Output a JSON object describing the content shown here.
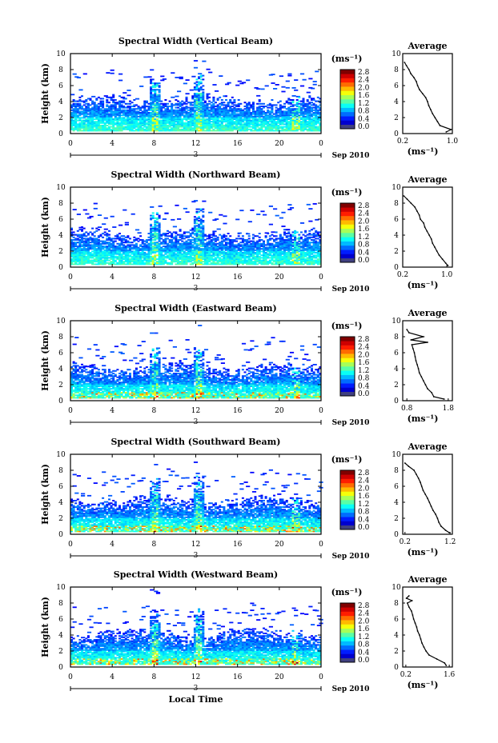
{
  "figure": {
    "xlabel": "Local Time",
    "average_title": "Average",
    "colorbar_unit": "(ms⁻¹)",
    "unit_label": "(ms⁻¹)",
    "ylabel": "Height (km)",
    "day_label": "3",
    "date_label": "Sep 2010"
  },
  "chart_data": [
    {
      "type": "heatmap",
      "title": "Spectral Width (Vertical Beam)",
      "ylabel": "Height (km)",
      "xticks": [
        "0",
        "4",
        "8",
        "12",
        "16",
        "20",
        "0"
      ],
      "yticks": [
        "0",
        "2",
        "4",
        "6",
        "8",
        "10"
      ],
      "xlim": [
        0,
        24
      ],
      "ylim": [
        0,
        10
      ],
      "colorbar": {
        "label": "(ms⁻¹)",
        "ticks": [
          "2.8",
          "2.4",
          "2.0",
          "1.6",
          "1.2",
          "0.8",
          "0.4",
          "0.0"
        ],
        "range": [
          0,
          2.8
        ]
      },
      "average_profile": {
        "title": "Average",
        "xlabel": "(ms⁻¹)",
        "xticks": [
          "0.2",
          "1.0"
        ],
        "xlim": [
          0.2,
          1.0
        ],
        "ylim": [
          0,
          10
        ],
        "height": [
          0.2,
          0.5,
          1,
          1.5,
          2,
          2.5,
          3,
          3.5,
          4,
          4.5,
          5,
          5.5,
          6,
          6.5,
          7,
          7.5,
          8,
          8.5,
          8.9
        ],
        "value": [
          0.9,
          0.98,
          0.8,
          0.76,
          0.72,
          0.68,
          0.65,
          0.62,
          0.6,
          0.57,
          0.52,
          0.47,
          0.44,
          0.42,
          0.38,
          0.33,
          0.3,
          0.26,
          0.23
        ]
      }
    },
    {
      "type": "heatmap",
      "title": "Spectral Width (Northward Beam)",
      "ylabel": "Height (km)",
      "xticks": [
        "0",
        "4",
        "8",
        "12",
        "16",
        "20",
        "0"
      ],
      "yticks": [
        "0",
        "2",
        "4",
        "6",
        "8",
        "10"
      ],
      "xlim": [
        0,
        24
      ],
      "ylim": [
        0,
        10
      ],
      "colorbar": {
        "label": "(ms⁻¹)",
        "ticks": [
          "2.8",
          "2.4",
          "2.0",
          "1.6",
          "1.2",
          "0.8",
          "0.4",
          "0.0"
        ],
        "range": [
          0,
          2.8
        ]
      },
      "average_profile": {
        "title": "Average",
        "xlabel": "(ms⁻¹)",
        "xticks": [
          "0.2",
          "1.0"
        ],
        "xlim": [
          0.2,
          1.1
        ],
        "ylim": [
          0,
          10
        ],
        "height": [
          0.2,
          0.5,
          1,
          1.5,
          2,
          2.5,
          3,
          3.5,
          4,
          4.5,
          5,
          5.5,
          6,
          6.5,
          7,
          7.5,
          8,
          8.5,
          8.9
        ],
        "value": [
          1.02,
          0.98,
          0.92,
          0.86,
          0.82,
          0.78,
          0.74,
          0.72,
          0.68,
          0.64,
          0.6,
          0.58,
          0.52,
          0.5,
          0.46,
          0.42,
          0.35,
          0.28,
          0.22
        ]
      }
    },
    {
      "type": "heatmap",
      "title": "Spectral Width (Eastward Beam)",
      "ylabel": "Height (km)",
      "xticks": [
        "0",
        "4",
        "8",
        "12",
        "16",
        "20",
        "0"
      ],
      "yticks": [
        "0",
        "2",
        "4",
        "6",
        "8",
        "10"
      ],
      "xlim": [
        0,
        24
      ],
      "ylim": [
        0,
        10
      ],
      "colorbar": {
        "label": "(ms⁻¹)",
        "ticks": [
          "2.8",
          "2.4",
          "2.0",
          "1.6",
          "1.2",
          "0.8",
          "0.4",
          "0.0"
        ],
        "range": [
          0,
          2.8
        ]
      },
      "average_profile": {
        "title": "Average",
        "xlabel": "(ms⁻¹)",
        "xticks": [
          "0.8",
          "1.8"
        ],
        "xlim": [
          0.7,
          1.9
        ],
        "ylim": [
          0,
          10
        ],
        "height": [
          0.2,
          0.5,
          1,
          1.5,
          2,
          2.5,
          3,
          3.5,
          4,
          4.5,
          5,
          5.5,
          6,
          6.5,
          7,
          7.3,
          7.6,
          8,
          8.5,
          8.9
        ],
        "value": [
          1.7,
          1.45,
          1.4,
          1.3,
          1.25,
          1.2,
          1.15,
          1.1,
          1.08,
          1.05,
          1.02,
          1.0,
          0.98,
          0.95,
          0.92,
          1.3,
          0.9,
          1.2,
          0.85,
          0.8
        ]
      }
    },
    {
      "type": "heatmap",
      "title": "Spectral Width (Southward Beam)",
      "ylabel": "Height (km)",
      "xticks": [
        "0",
        "4",
        "8",
        "12",
        "16",
        "20",
        "0"
      ],
      "yticks": [
        "0",
        "2",
        "4",
        "6",
        "8",
        "10"
      ],
      "xlim": [
        0,
        24
      ],
      "ylim": [
        0,
        10
      ],
      "colorbar": {
        "label": "(ms⁻¹)",
        "ticks": [
          "2.8",
          "2.4",
          "2.0",
          "1.6",
          "1.2",
          "0.8",
          "0.4",
          "0.0"
        ],
        "range": [
          0,
          2.8
        ]
      },
      "average_profile": {
        "title": "Average",
        "xlabel": "(ms⁻¹)",
        "xticks": [
          "0.2",
          "1.2"
        ],
        "xlim": [
          0.15,
          1.25
        ],
        "ylim": [
          0,
          10
        ],
        "height": [
          0.2,
          0.5,
          1,
          1.5,
          2,
          2.5,
          3,
          3.5,
          4,
          4.5,
          5,
          5.5,
          6,
          6.5,
          7,
          7.5,
          8,
          8.5,
          8.9
        ],
        "value": [
          1.18,
          1.1,
          1.0,
          0.95,
          0.92,
          0.88,
          0.82,
          0.78,
          0.74,
          0.7,
          0.65,
          0.6,
          0.57,
          0.54,
          0.5,
          0.45,
          0.4,
          0.28,
          0.2
        ]
      }
    },
    {
      "type": "heatmap",
      "title": "Spectral Width (Westward Beam)",
      "ylabel": "Height (km)",
      "xlabel": "Local Time",
      "xticks": [
        "0",
        "4",
        "8",
        "12",
        "16",
        "20",
        "0"
      ],
      "yticks": [
        "0",
        "2",
        "4",
        "6",
        "8",
        "10"
      ],
      "xlim": [
        0,
        24
      ],
      "ylim": [
        0,
        10
      ],
      "colorbar": {
        "label": "(ms⁻¹)",
        "ticks": [
          "2.8",
          "2.4",
          "2.0",
          "1.6",
          "1.2",
          "0.8",
          "0.4",
          "0.0"
        ],
        "range": [
          0,
          2.8
        ]
      },
      "average_profile": {
        "title": "Average",
        "xlabel": "(ms⁻¹)",
        "xticks": [
          "0.2",
          "1.6"
        ],
        "xlim": [
          0.1,
          1.7
        ],
        "ylim": [
          0,
          10
        ],
        "height": [
          0.2,
          0.5,
          1,
          1.5,
          2,
          2.5,
          3,
          3.5,
          4,
          4.5,
          5,
          5.5,
          6,
          6.5,
          7,
          7.5,
          8,
          8.3,
          8.6,
          8.9
        ],
        "value": [
          1.5,
          1.45,
          1.2,
          0.95,
          0.85,
          0.78,
          0.72,
          0.68,
          0.64,
          0.58,
          0.55,
          0.5,
          0.45,
          0.42,
          0.38,
          0.3,
          0.25,
          0.4,
          0.22,
          0.3
        ]
      }
    }
  ]
}
